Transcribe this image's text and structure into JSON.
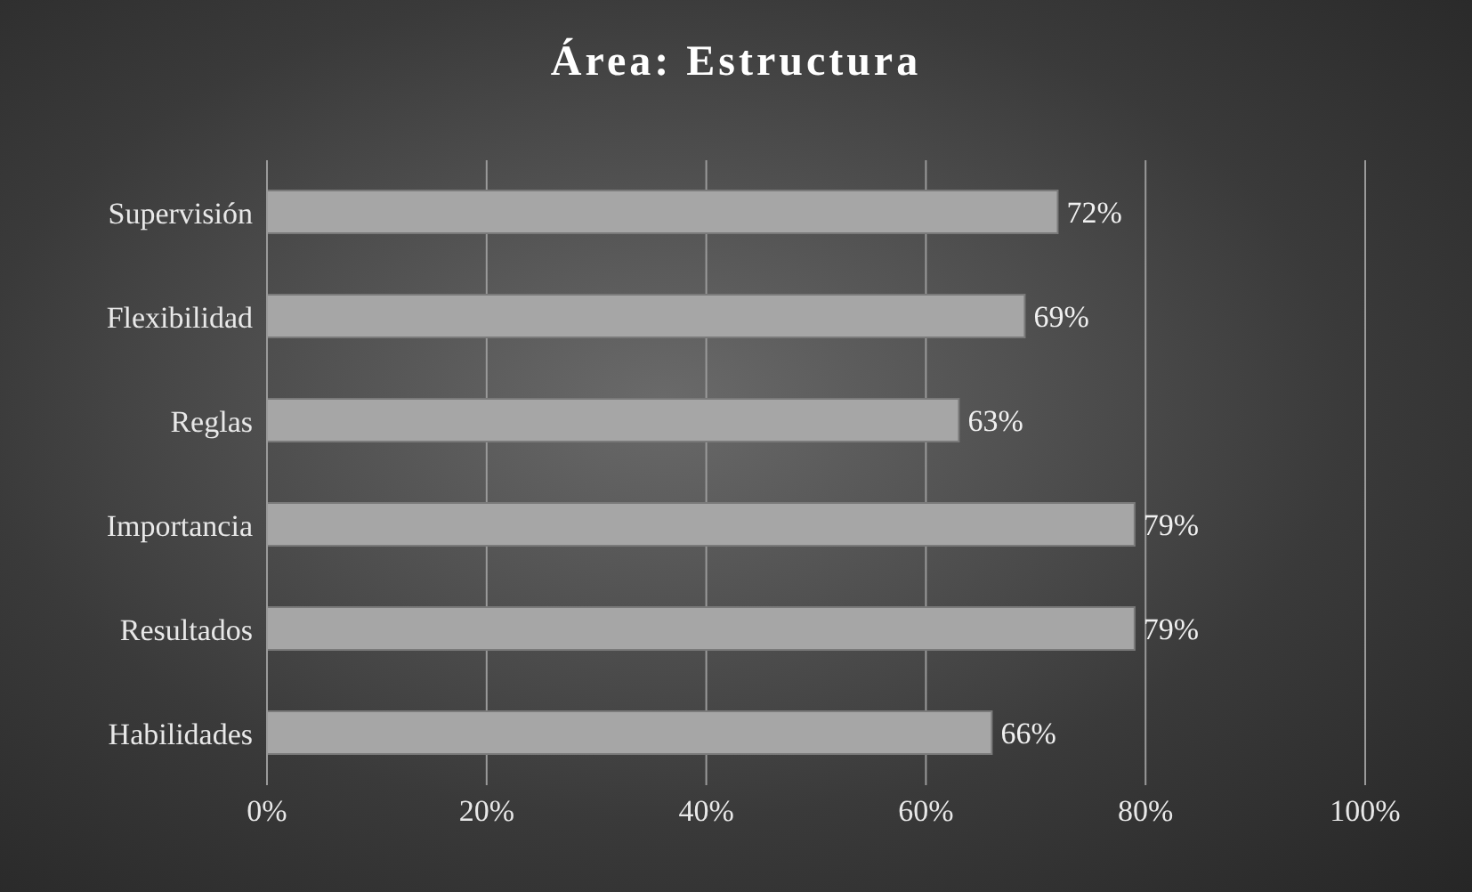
{
  "chart_data": {
    "type": "bar",
    "title": "Área: Estructura",
    "orientation": "horizontal",
    "categories": [
      "Supervisión",
      "Flexibilidad",
      "Reglas",
      "Importancia",
      "Resultados",
      "Habilidades"
    ],
    "values": [
      72,
      69,
      63,
      79,
      79,
      66
    ],
    "value_labels": [
      "72%",
      "69%",
      "63%",
      "79%",
      "79%",
      "66%"
    ],
    "color": "#a6a6a6",
    "xlim": [
      0,
      100
    ],
    "xticks": [
      {
        "value": 0,
        "label": "0%"
      },
      {
        "value": 20,
        "label": "20%"
      },
      {
        "value": 40,
        "label": "40%"
      },
      {
        "value": 60,
        "label": "60%"
      },
      {
        "value": 80,
        "label": "80%"
      },
      {
        "value": 100,
        "label": "100%"
      }
    ],
    "grid": "x",
    "legend": false
  }
}
